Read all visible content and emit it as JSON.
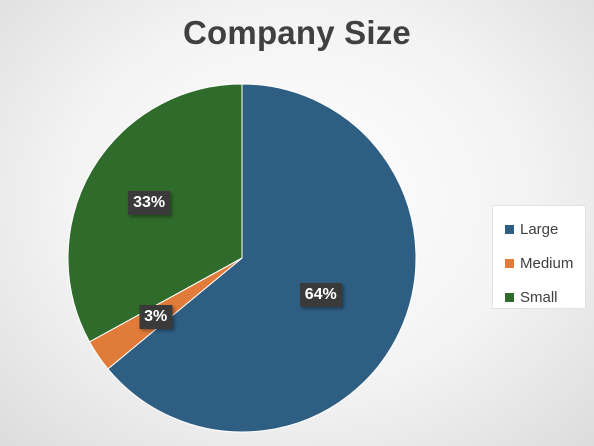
{
  "chart_data": {
    "type": "pie",
    "title": "Company Size",
    "categories": [
      "Large",
      "Medium",
      "Small"
    ],
    "values": [
      64,
      3,
      33
    ],
    "labels": [
      "64%",
      "3%",
      "33%"
    ],
    "colors": [
      "#2e5f83",
      "#e07b39",
      "#2f6b2a"
    ],
    "legend_position": "right",
    "start_angle": "12 o'clock, clockwise"
  }
}
